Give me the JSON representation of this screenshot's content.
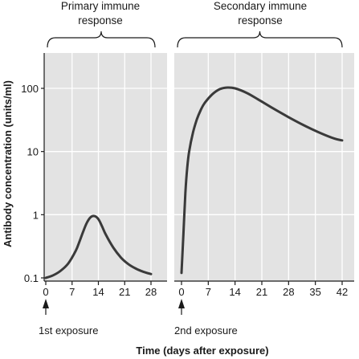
{
  "chart_data": [
    {
      "type": "line",
      "title_lines": [
        "Primary immune",
        "response"
      ],
      "x_ticks": [
        0,
        7,
        14,
        21,
        28
      ],
      "xlim": [
        0,
        30
      ],
      "y_scale": "log",
      "ylim": [
        0.1,
        500
      ],
      "y_ticks": [
        0.1,
        1,
        10,
        100
      ],
      "y_tick_labels": [
        "0.1",
        "1",
        "10",
        "100"
      ],
      "series": [
        {
          "x": [
            0,
            2,
            4,
            6,
            8,
            9,
            10,
            11,
            12,
            13,
            14,
            15,
            16,
            18,
            20,
            22,
            24,
            26,
            28
          ],
          "y": [
            0.1,
            0.11,
            0.13,
            0.17,
            0.27,
            0.38,
            0.55,
            0.76,
            0.92,
            0.95,
            0.85,
            0.65,
            0.48,
            0.3,
            0.21,
            0.165,
            0.14,
            0.125,
            0.115
          ]
        }
      ],
      "annotation": "1st exposure",
      "annotation_x": 0
    },
    {
      "type": "line",
      "title_lines": [
        "Secondary immune",
        "response"
      ],
      "x_ticks": [
        0,
        7,
        14,
        21,
        28,
        35,
        42
      ],
      "xlim": [
        0,
        44
      ],
      "y_scale": "log",
      "ylim": [
        0.1,
        500
      ],
      "series": [
        {
          "x": [
            0,
            0.5,
            1,
            1.5,
            2,
            3,
            4,
            5,
            6,
            8,
            10,
            12,
            14,
            17,
            20,
            24,
            28,
            32,
            36,
            40,
            42
          ],
          "y": [
            0.12,
            0.5,
            2.2,
            5.5,
            10,
            20,
            32,
            45,
            58,
            80,
            97,
            103,
            100,
            85,
            67,
            48,
            35,
            26,
            20,
            16,
            15
          ]
        }
      ],
      "annotation": "2nd exposure",
      "annotation_x": 0
    }
  ],
  "shared": {
    "ylabel": "Antibody concentration (units/ml)",
    "xlabel": "Time (days after exposure)"
  }
}
